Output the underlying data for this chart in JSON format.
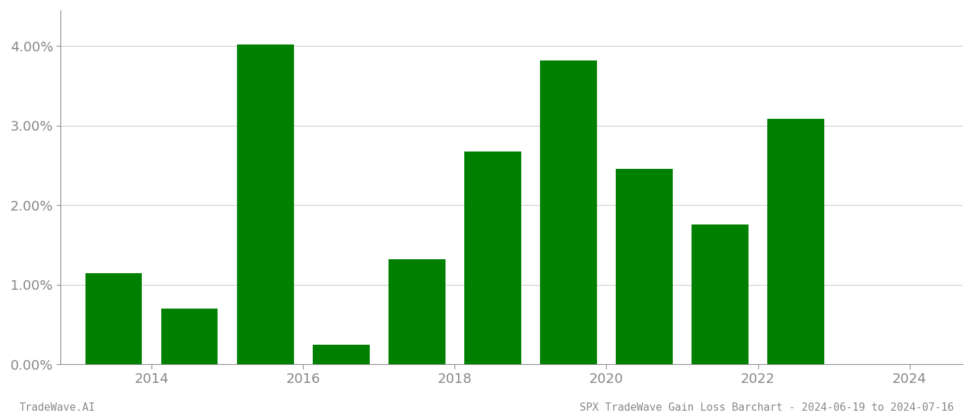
{
  "years": [
    2014,
    2015,
    2016,
    2017,
    2018,
    2019,
    2020,
    2021,
    2022,
    2023,
    2024
  ],
  "values": [
    1.15,
    0.7,
    4.02,
    0.25,
    1.32,
    2.68,
    3.82,
    2.46,
    1.76,
    3.09,
    0.0
  ],
  "bar_color": "#008000",
  "background_color": "#ffffff",
  "grid_color": "#cccccc",
  "tick_color": "#888888",
  "ylim": [
    0,
    4.45
  ],
  "yticks": [
    0.0,
    1.0,
    2.0,
    3.0,
    4.0
  ],
  "xtick_labels": [
    "2014",
    "2016",
    "2018",
    "2020",
    "2022",
    "2024"
  ],
  "xtick_positions": [
    2014.5,
    2016.5,
    2018.5,
    2020.5,
    2022.5,
    2024.5
  ],
  "xlim": [
    2013.3,
    2025.2
  ],
  "bar_width": 0.75,
  "figsize": [
    14.0,
    6.0
  ],
  "dpi": 100,
  "footer_left": "TradeWave.AI",
  "footer_right": "SPX TradeWave Gain Loss Barchart - 2024-06-19 to 2024-07-16",
  "tick_fontsize": 14,
  "footer_fontsize": 11
}
